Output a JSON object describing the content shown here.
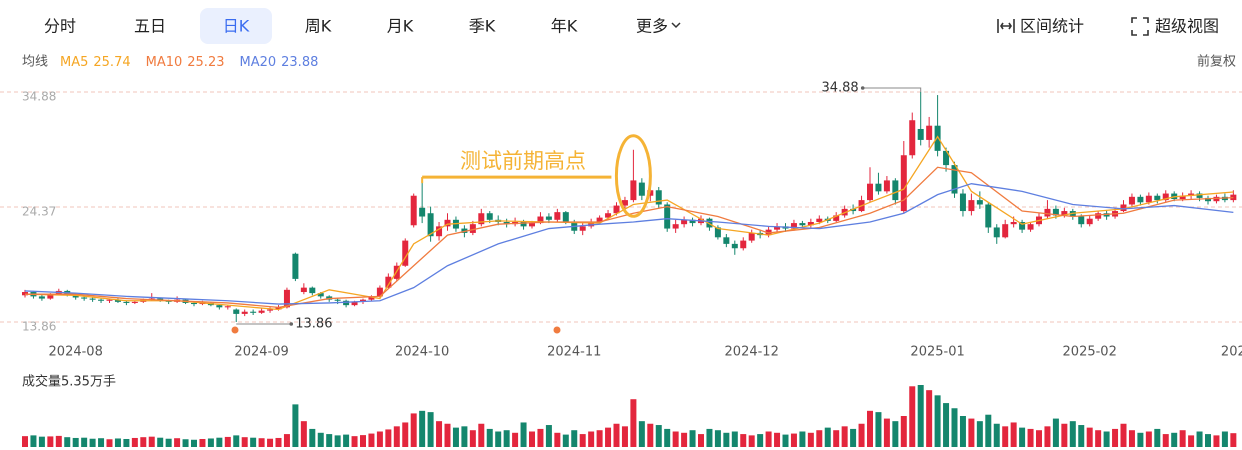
{
  "tabs": [
    "分时",
    "五日",
    "日K",
    "周K",
    "月K",
    "季K",
    "年K",
    "更多"
  ],
  "selected_tab": 2,
  "tools": [
    "区间统计",
    "超级视图"
  ],
  "chart_data": {
    "type": "candlestick",
    "ma_label": "均线",
    "adjust_label": "前复权",
    "up_color": "#e3263d",
    "down_color": "#14866d",
    "ylim": [
      13.86,
      34.88
    ],
    "yticks": [
      13.86,
      24.37,
      34.88
    ],
    "grid": true,
    "xticks": [
      {
        "value": 6,
        "label": "2024-08"
      },
      {
        "value": 28,
        "label": "2024-09"
      },
      {
        "value": 47,
        "label": "2024-10"
      },
      {
        "value": 65,
        "label": "2024-11"
      },
      {
        "value": 86,
        "label": "2024-12"
      },
      {
        "value": 108,
        "label": "2025-01"
      },
      {
        "value": 126,
        "label": "2025-02"
      },
      {
        "value": 143,
        "label": "202"
      }
    ],
    "note": "测试前期高点",
    "ohlc": [
      [
        16.3,
        16.6,
        16.8,
        16.1
      ],
      [
        16.6,
        16.2,
        16.7,
        16.0
      ],
      [
        16.2,
        16.0,
        16.4,
        15.8
      ],
      [
        16.0,
        16.4,
        16.5,
        15.9
      ],
      [
        16.4,
        16.7,
        16.9,
        16.3
      ],
      [
        16.7,
        16.3,
        16.8,
        16.2
      ],
      [
        16.3,
        16.1,
        16.4,
        15.9
      ],
      [
        16.1,
        16.0,
        16.2,
        15.8
      ],
      [
        16.0,
        15.9,
        16.1,
        15.7
      ],
      [
        15.9,
        15.8,
        16.0,
        15.6
      ],
      [
        15.8,
        15.9,
        16.0,
        15.6
      ],
      [
        15.9,
        15.7,
        16.0,
        15.6
      ],
      [
        15.7,
        15.6,
        15.8,
        15.4
      ],
      [
        15.6,
        15.7,
        15.8,
        15.5
      ],
      [
        15.7,
        15.9,
        16.0,
        15.6
      ],
      [
        15.9,
        16.0,
        16.5,
        15.8
      ],
      [
        16.0,
        15.8,
        16.1,
        15.7
      ],
      [
        15.8,
        15.7,
        15.9,
        15.5
      ],
      [
        15.7,
        15.9,
        16.2,
        15.6
      ],
      [
        15.9,
        15.6,
        16.0,
        15.5
      ],
      [
        15.6,
        15.5,
        15.7,
        15.3
      ],
      [
        15.5,
        15.6,
        15.8,
        15.4
      ],
      [
        15.6,
        15.4,
        15.7,
        15.3
      ],
      [
        15.4,
        15.2,
        15.5,
        15.0
      ],
      [
        15.2,
        15.3,
        15.4,
        15.0
      ],
      [
        15.0,
        14.6,
        15.1,
        13.86
      ],
      [
        14.6,
        14.8,
        15.0,
        14.4
      ],
      [
        14.8,
        14.7,
        15.0,
        14.5
      ],
      [
        14.7,
        14.9,
        15.1,
        14.6
      ],
      [
        14.9,
        15.0,
        15.2,
        14.7
      ],
      [
        15.0,
        15.2,
        15.4,
        14.9
      ],
      [
        15.2,
        16.8,
        17.0,
        15.1
      ],
      [
        20.1,
        17.8,
        20.2,
        17.6
      ],
      [
        16.6,
        17.0,
        17.4,
        16.4
      ],
      [
        17.0,
        16.5,
        17.1,
        16.3
      ],
      [
        16.5,
        16.2,
        16.6,
        16.0
      ],
      [
        16.2,
        15.9,
        16.3,
        15.7
      ],
      [
        15.9,
        15.8,
        16.0,
        15.5
      ],
      [
        15.8,
        15.4,
        15.9,
        15.2
      ],
      [
        15.4,
        15.7,
        15.8,
        15.3
      ],
      [
        15.7,
        15.9,
        16.0,
        15.5
      ],
      [
        15.9,
        16.2,
        16.3,
        15.8
      ],
      [
        16.2,
        17.0,
        17.2,
        16.1
      ],
      [
        17.0,
        18.0,
        18.3,
        16.9
      ],
      [
        17.8,
        19.0,
        19.3,
        17.6
      ],
      [
        19.0,
        21.3,
        21.5,
        18.9
      ],
      [
        22.7,
        25.4,
        25.6,
        22.5
      ],
      [
        24.3,
        23.5,
        27.1,
        22.9
      ],
      [
        23.8,
        21.7,
        24.4,
        21.2
      ],
      [
        21.7,
        22.6,
        23.0,
        21.3
      ],
      [
        22.6,
        23.2,
        23.8,
        22.2
      ],
      [
        23.2,
        22.4,
        23.5,
        22.1
      ],
      [
        22.4,
        22.0,
        22.7,
        21.6
      ],
      [
        22.0,
        22.8,
        23.1,
        21.8
      ],
      [
        22.8,
        23.8,
        24.2,
        22.6
      ],
      [
        23.8,
        23.2,
        24.0,
        22.9
      ],
      [
        23.2,
        23.0,
        23.6,
        22.7
      ],
      [
        23.0,
        22.8,
        23.3,
        22.5
      ],
      [
        22.8,
        23.0,
        23.4,
        22.6
      ],
      [
        23.0,
        22.6,
        23.2,
        22.3
      ],
      [
        22.6,
        22.9,
        23.1,
        22.4
      ],
      [
        22.9,
        23.5,
        23.9,
        22.8
      ],
      [
        23.5,
        23.2,
        23.8,
        22.9
      ],
      [
        23.2,
        23.9,
        24.2,
        23.0
      ],
      [
        23.9,
        23.0,
        24.0,
        22.8
      ],
      [
        23.0,
        22.2,
        23.2,
        21.9
      ],
      [
        22.2,
        22.6,
        22.9,
        21.8
      ],
      [
        22.6,
        23.0,
        23.3,
        22.4
      ],
      [
        23.0,
        23.4,
        23.6,
        22.8
      ],
      [
        23.4,
        23.8,
        24.1,
        23.2
      ],
      [
        23.8,
        24.5,
        24.8,
        23.6
      ],
      [
        24.5,
        25.0,
        25.3,
        24.2
      ],
      [
        25.0,
        26.8,
        29.6,
        24.8
      ],
      [
        26.6,
        25.4,
        27.0,
        25.0
      ],
      [
        25.4,
        25.9,
        26.3,
        24.9
      ],
      [
        25.9,
        24.6,
        26.2,
        24.3
      ],
      [
        24.6,
        22.4,
        24.8,
        22.1
      ],
      [
        22.4,
        22.8,
        23.2,
        22.0
      ],
      [
        22.8,
        23.2,
        23.5,
        22.5
      ],
      [
        23.2,
        22.9,
        23.4,
        22.6
      ],
      [
        22.9,
        23.3,
        23.6,
        22.7
      ],
      [
        23.3,
        22.5,
        23.4,
        22.2
      ],
      [
        22.5,
        21.6,
        22.7,
        21.4
      ],
      [
        21.6,
        21.0,
        21.9,
        20.7
      ],
      [
        21.0,
        20.6,
        21.3,
        20.0
      ],
      [
        20.6,
        21.3,
        21.6,
        20.4
      ],
      [
        21.3,
        22.0,
        22.3,
        21.1
      ],
      [
        22.0,
        21.8,
        22.3,
        21.5
      ],
      [
        21.8,
        22.3,
        22.6,
        21.6
      ],
      [
        22.3,
        22.6,
        22.9,
        22.1
      ],
      [
        22.6,
        22.4,
        22.9,
        22.1
      ],
      [
        22.4,
        22.9,
        23.2,
        22.2
      ],
      [
        22.9,
        22.7,
        23.1,
        22.4
      ],
      [
        22.7,
        23.0,
        23.3,
        22.5
      ],
      [
        23.0,
        23.3,
        23.6,
        22.8
      ],
      [
        23.3,
        23.1,
        23.5,
        22.9
      ],
      [
        23.1,
        23.6,
        23.9,
        23.0
      ],
      [
        23.6,
        24.2,
        24.5,
        23.4
      ],
      [
        24.2,
        24.0,
        24.6,
        23.7
      ],
      [
        24.0,
        25.0,
        25.4,
        23.9
      ],
      [
        25.0,
        26.5,
        28.0,
        24.8
      ],
      [
        26.5,
        25.8,
        27.5,
        25.5
      ],
      [
        25.8,
        26.8,
        27.2,
        25.6
      ],
      [
        26.8,
        25.0,
        27.0,
        24.6
      ],
      [
        24.0,
        29.1,
        30.4,
        23.8
      ],
      [
        29.1,
        32.3,
        33.0,
        28.8
      ],
      [
        31.5,
        30.5,
        34.88,
        30.0
      ],
      [
        30.5,
        31.8,
        32.6,
        29.8
      ],
      [
        31.8,
        29.5,
        34.6,
        29.0
      ],
      [
        29.5,
        28.2,
        29.8,
        27.6
      ],
      [
        28.2,
        25.6,
        28.5,
        25.2
      ],
      [
        25.6,
        24.0,
        26.0,
        23.5
      ],
      [
        24.0,
        25.0,
        25.6,
        23.6
      ],
      [
        25.0,
        24.6,
        25.8,
        24.2
      ],
      [
        24.6,
        22.5,
        24.8,
        22.0
      ],
      [
        22.5,
        21.6,
        22.8,
        21.0
      ],
      [
        21.6,
        22.8,
        23.2,
        21.5
      ],
      [
        22.8,
        23.0,
        23.5,
        22.5
      ],
      [
        23.0,
        22.3,
        23.2,
        22.0
      ],
      [
        22.3,
        22.8,
        23.0,
        22.1
      ],
      [
        22.8,
        23.5,
        23.8,
        22.6
      ],
      [
        23.5,
        24.2,
        25.0,
        23.3
      ],
      [
        24.2,
        23.6,
        24.5,
        23.3
      ],
      [
        23.6,
        24.0,
        24.3,
        23.4
      ],
      [
        24.0,
        23.5,
        24.2,
        23.2
      ],
      [
        23.5,
        22.8,
        23.7,
        22.5
      ],
      [
        22.8,
        23.3,
        23.6,
        22.6
      ],
      [
        23.3,
        23.8,
        24.0,
        23.1
      ],
      [
        23.8,
        23.5,
        24.1,
        23.2
      ],
      [
        23.5,
        24.0,
        24.3,
        23.3
      ],
      [
        24.0,
        24.6,
        25.0,
        23.9
      ],
      [
        24.6,
        25.3,
        25.6,
        24.4
      ],
      [
        25.3,
        24.8,
        25.5,
        24.5
      ],
      [
        24.8,
        25.4,
        25.7,
        24.6
      ],
      [
        25.4,
        25.0,
        25.6,
        24.7
      ],
      [
        25.0,
        25.6,
        25.9,
        24.8
      ],
      [
        25.6,
        25.1,
        25.8,
        24.9
      ],
      [
        25.1,
        25.4,
        25.7,
        24.9
      ],
      [
        25.4,
        25.6,
        25.9,
        25.1
      ],
      [
        25.6,
        25.2,
        25.8,
        24.9
      ],
      [
        25.2,
        24.9,
        25.4,
        24.6
      ],
      [
        24.9,
        25.3,
        25.5,
        24.7
      ],
      [
        25.3,
        25.0,
        25.6,
        24.8
      ],
      [
        25.0,
        25.5,
        25.9,
        24.8
      ]
    ],
    "volume_label": "成交量5.35万手",
    "volume_ylim": [
      0,
      24
    ],
    "volume": [
      4.2,
      4.5,
      4.0,
      4.1,
      4.3,
      3.8,
      3.5,
      3.6,
      3.2,
      3.4,
      3.0,
      3.3,
      3.1,
      3.5,
      3.8,
      4.0,
      3.6,
      3.2,
      3.4,
      3.0,
      2.8,
      3.1,
      3.3,
      3.6,
      3.9,
      4.5,
      3.8,
      3.6,
      3.4,
      3.2,
      3.5,
      5.0,
      16.5,
      10.0,
      7.0,
      5.5,
      5.0,
      4.5,
      4.8,
      4.2,
      4.6,
      5.2,
      6.0,
      6.8,
      8.0,
      9.5,
      13.0,
      14.0,
      13.5,
      10.0,
      9.0,
      7.5,
      8.0,
      6.5,
      9.0,
      7.0,
      6.0,
      6.5,
      5.5,
      9.5,
      6.0,
      7.0,
      8.5,
      5.5,
      4.8,
      6.5,
      5.0,
      6.0,
      6.5,
      7.5,
      9.0,
      8.0,
      18.5,
      10.0,
      9.0,
      8.5,
      7.0,
      6.0,
      5.5,
      6.5,
      5.0,
      7.0,
      6.5,
      5.5,
      6.0,
      5.0,
      4.5,
      5.0,
      6.0,
      5.5,
      4.8,
      5.2,
      6.0,
      5.5,
      6.5,
      7.5,
      6.5,
      8.0,
      7.0,
      9.0,
      14.0,
      13.5,
      11.0,
      10.0,
      12.0,
      23.5,
      24.0,
      22.0,
      20.0,
      17.0,
      15.0,
      12.0,
      11.0,
      10.0,
      12.5,
      9.0,
      8.0,
      9.5,
      7.5,
      7.0,
      6.5,
      8.0,
      11.0,
      9.0,
      10.0,
      8.5,
      7.5,
      6.5,
      6.0,
      7.0,
      9.0,
      6.5,
      5.5,
      6.0,
      7.0,
      5.0,
      5.5,
      6.5,
      4.5,
      6.0,
      5.0,
      4.5,
      6.0,
      5.35
    ],
    "ma_series": [
      {
        "name": "MA5",
        "value": 25.74,
        "color": "#f5a623",
        "x": [
          0,
          6,
          12,
          18,
          24,
          30,
          36,
          42,
          46,
          50,
          56,
          62,
          68,
          72,
          76,
          82,
          88,
          94,
          100,
          104,
          108,
          112,
          118,
          124,
          130,
          136,
          143
        ],
        "values": [
          16.4,
          16.3,
          15.8,
          15.8,
          15.4,
          15.0,
          16.8,
          16.0,
          21.0,
          22.8,
          23.1,
          23.0,
          22.9,
          24.6,
          25.0,
          22.4,
          21.8,
          22.9,
          24.8,
          26.0,
          30.8,
          25.8,
          22.8,
          23.8,
          24.2,
          25.3,
          25.74
        ]
      },
      {
        "name": "MA10",
        "value": 25.23,
        "color": "#f07b3f",
        "x": [
          0,
          6,
          12,
          18,
          24,
          30,
          36,
          42,
          46,
          50,
          56,
          62,
          68,
          72,
          76,
          82,
          88,
          94,
          100,
          104,
          108,
          112,
          118,
          124,
          130,
          136,
          143
        ],
        "values": [
          16.4,
          16.4,
          16.0,
          15.8,
          15.6,
          15.2,
          16.0,
          16.2,
          19.0,
          21.8,
          22.8,
          23.0,
          23.0,
          23.8,
          24.4,
          23.5,
          22.0,
          22.5,
          23.8,
          25.0,
          28.0,
          27.5,
          24.0,
          23.5,
          23.8,
          25.0,
          25.23
        ]
      },
      {
        "name": "MA20",
        "value": 23.88,
        "color": "#5e7fe0",
        "x": [
          0,
          6,
          12,
          18,
          24,
          30,
          36,
          42,
          46,
          50,
          56,
          62,
          68,
          72,
          76,
          82,
          88,
          94,
          100,
          104,
          108,
          112,
          118,
          124,
          130,
          136,
          143
        ],
        "values": [
          16.7,
          16.5,
          16.2,
          16.0,
          15.8,
          15.5,
          15.6,
          15.8,
          17.0,
          19.0,
          21.0,
          22.4,
          22.8,
          23.0,
          23.3,
          23.0,
          22.6,
          22.4,
          23.0,
          23.8,
          25.5,
          26.5,
          25.8,
          24.6,
          24.2,
          24.5,
          23.88
        ]
      }
    ]
  }
}
